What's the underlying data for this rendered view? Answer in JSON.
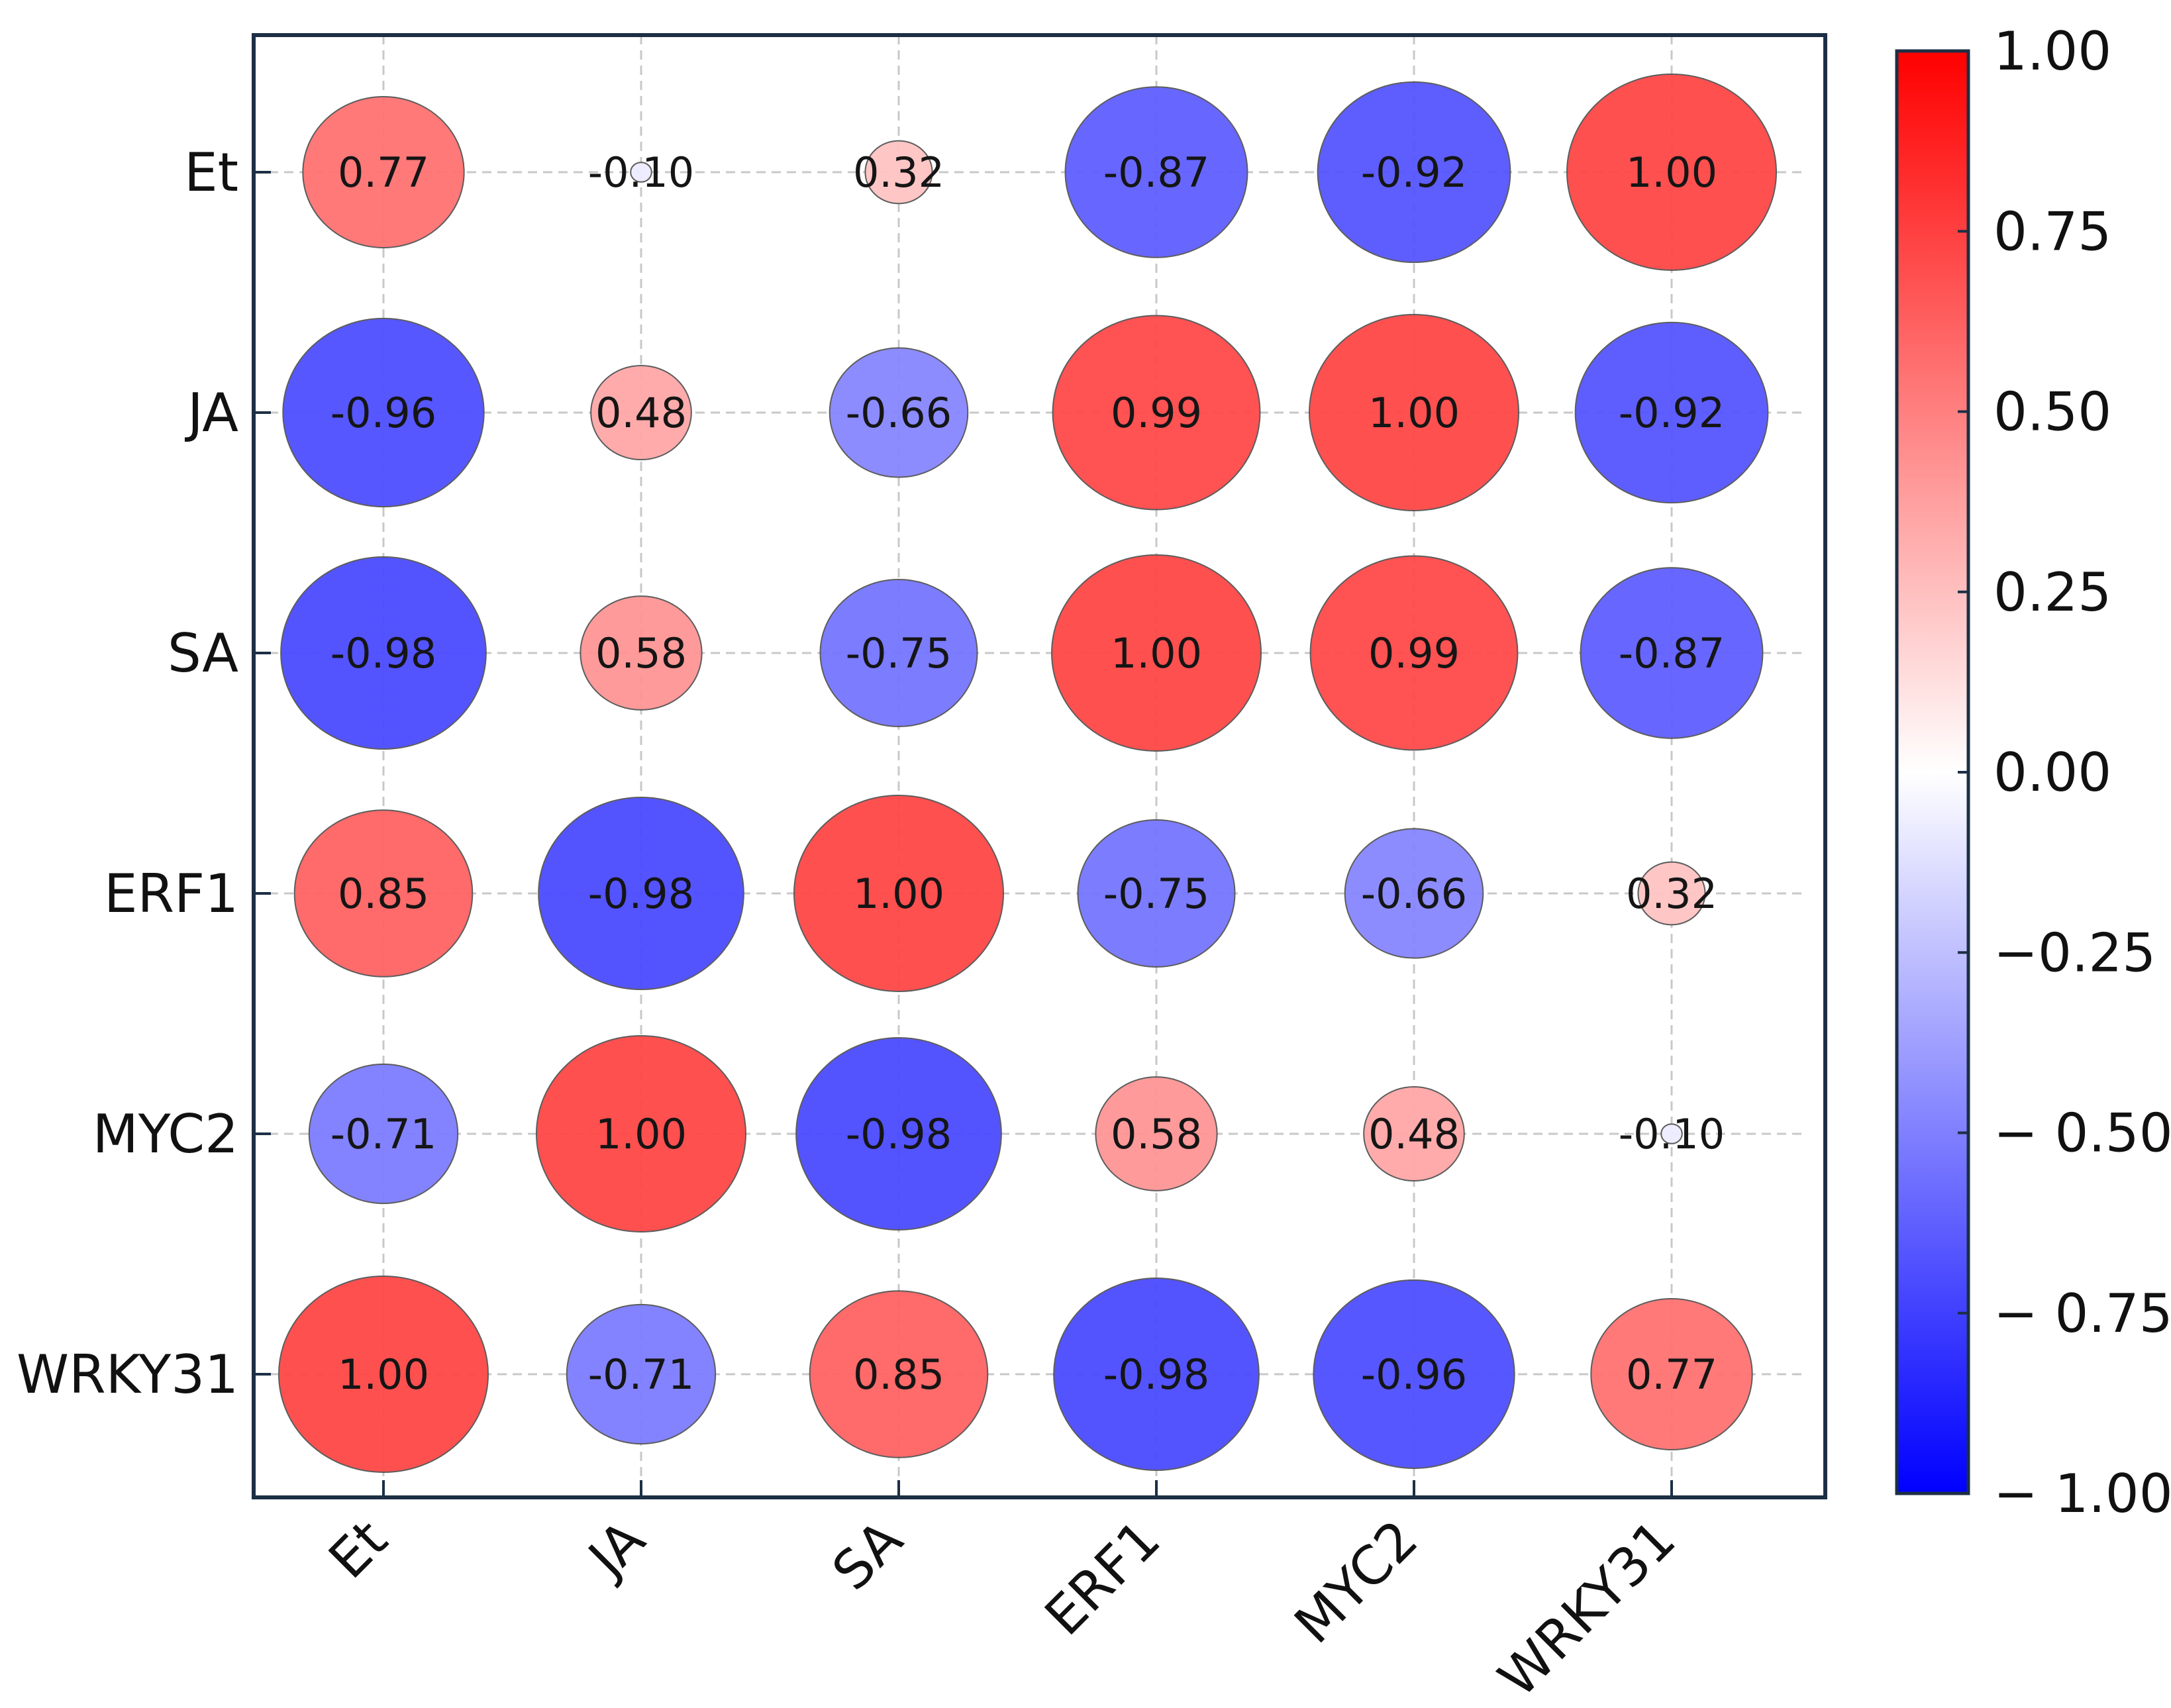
{
  "chart_data": {
    "type": "heatmap",
    "style": "bubble correlation matrix",
    "row_labels": [
      "Et",
      "JA",
      "SA",
      "ERF1",
      "MYC2",
      "WRKY31"
    ],
    "col_labels": [
      "Et",
      "JA",
      "SA",
      "ERF1",
      "MYC2",
      "WRKY31"
    ],
    "values": [
      [
        0.77,
        -0.1,
        0.32,
        -0.87,
        -0.92,
        1.0
      ],
      [
        -0.96,
        0.48,
        -0.66,
        0.99,
        1.0,
        -0.92
      ],
      [
        -0.98,
        0.58,
        -0.75,
        1.0,
        0.99,
        -0.87
      ],
      [
        0.85,
        -0.98,
        1.0,
        -0.75,
        -0.66,
        0.32
      ],
      [
        -0.71,
        1.0,
        -0.98,
        0.58,
        0.48,
        -0.1
      ],
      [
        1.0,
        -0.71,
        0.85,
        -0.98,
        -0.96,
        0.77
      ]
    ],
    "value_labels": [
      [
        "0.77",
        "-0.10",
        "0.32",
        "-0.87",
        "-0.92",
        "1.00"
      ],
      [
        "-0.96",
        "0.48",
        "-0.66",
        "0.99",
        "1.00",
        "-0.92"
      ],
      [
        "-0.98",
        "0.58",
        "-0.75",
        "1.00",
        "0.99",
        "-0.87"
      ],
      [
        "0.85",
        "-0.98",
        "1.00",
        "-0.75",
        "-0.66",
        "0.32"
      ],
      [
        "-0.71",
        "1.00",
        "-0.98",
        "0.58",
        "0.48",
        "-0.10"
      ],
      [
        "1.00",
        "-0.71",
        "0.85",
        "-0.98",
        "-0.96",
        "0.77"
      ]
    ],
    "colorbar": {
      "range": [
        -1.0,
        1.0
      ],
      "ticks": [
        "1.00",
        "0.75",
        "0.50",
        "0.25",
        "0.00",
        "−0.25",
        "− 0.50",
        "− 0.75",
        "− 1.00"
      ],
      "colormap": "bwr",
      "low_color": "#0000ff",
      "mid_color": "#ffffff",
      "high_color": "#ff0000"
    },
    "grid": true,
    "title": "",
    "xlabel": "",
    "ylabel": ""
  }
}
